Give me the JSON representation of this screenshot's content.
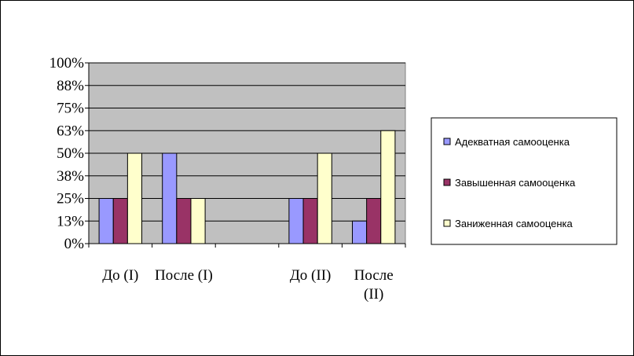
{
  "chart_data": {
    "type": "bar",
    "categories": [
      [
        "До (I)"
      ],
      [
        "После (I)"
      ],
      [
        ""
      ],
      [
        "До (II)"
      ],
      [
        "После",
        "(II)"
      ]
    ],
    "series": [
      {
        "name": "Адекватная самооценка",
        "color": "#9999ff",
        "values": [
          25,
          50,
          null,
          25,
          12.5
        ]
      },
      {
        "name": "Завышенная самооценка",
        "color": "#993366",
        "values": [
          25,
          25,
          null,
          25,
          25
        ]
      },
      {
        "name": "Заниженная самооценка",
        "color": "#ffffcc",
        "values": [
          50,
          25,
          null,
          50,
          62.5
        ]
      }
    ],
    "y_ticks": [
      "0%",
      "13%",
      "25%",
      "38%",
      "50%",
      "63%",
      "75%",
      "88%",
      "100%"
    ],
    "ylim": [
      0,
      100
    ],
    "grid": true,
    "plot_background": "#c0c0c0",
    "legend_position": "right"
  }
}
